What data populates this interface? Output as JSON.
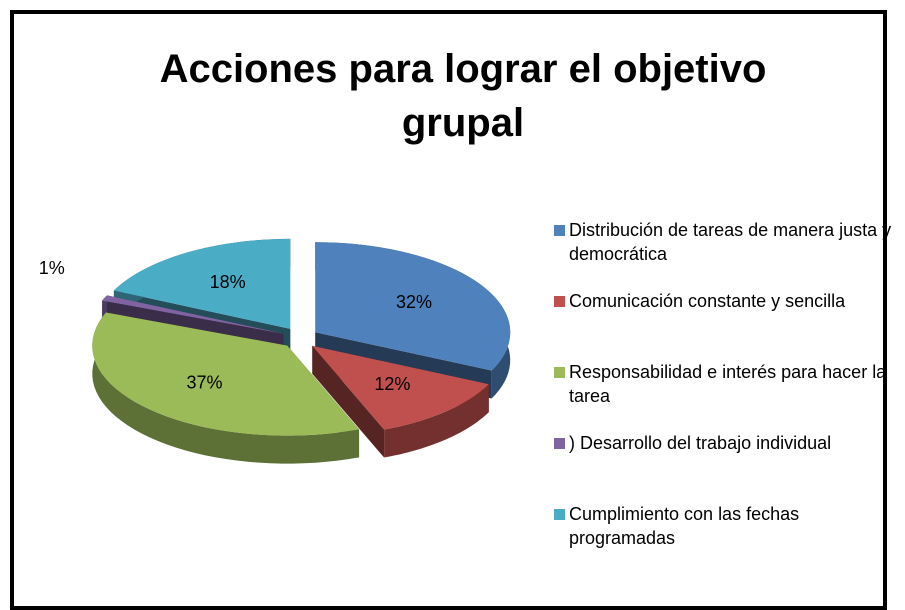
{
  "chart_data": {
    "type": "pie",
    "title": "Acciones para lograr el objetivo grupal",
    "categories": [
      "Distribución de tareas de manera justa y democrática",
      "Comunicación constante y sencilla",
      "Responsabilidad e interés para hacer la tarea",
      ") Desarrollo del trabajo  individual",
      "Cumplimiento con las fechas programadas"
    ],
    "values": [
      32,
      12,
      37,
      1,
      18
    ],
    "value_labels": [
      "32%",
      "12%",
      "37%",
      "1%",
      "18%"
    ],
    "colors": [
      "#4f81bd",
      "#c0504d",
      "#9bbb59",
      "#8064a2",
      "#4bacc6"
    ],
    "legend": "right"
  }
}
